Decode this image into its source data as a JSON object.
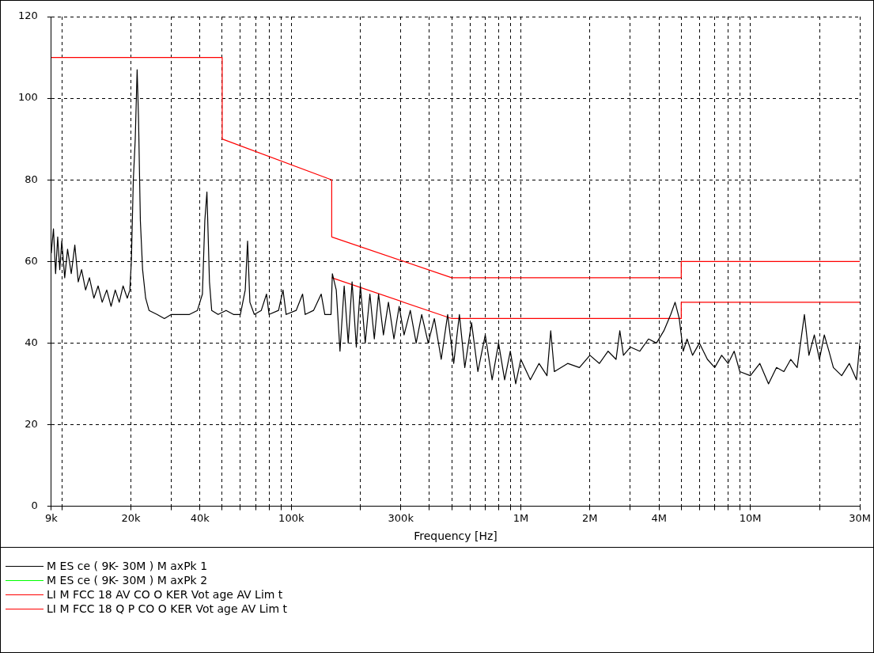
{
  "chart_data": {
    "type": "line",
    "xlabel": "Frequency [Hz]",
    "log": "x",
    "grid": true,
    "legend": "bottom",
    "marker": "none",
    "line_style": "solid",
    "xlim": [
      9000,
      30000000
    ],
    "ylim": [
      0,
      120
    ],
    "yticks": [
      0,
      20,
      40,
      60,
      80,
      100,
      120
    ],
    "xticks": [
      {
        "value": 9000,
        "label": "9k"
      },
      {
        "value": 10000,
        "label": null
      },
      {
        "value": 20000,
        "label": "20k"
      },
      {
        "value": 30000,
        "label": null
      },
      {
        "value": 40000,
        "label": "40k"
      },
      {
        "value": 50000,
        "label": null
      },
      {
        "value": 60000,
        "label": null
      },
      {
        "value": 70000,
        "label": null
      },
      {
        "value": 80000,
        "label": null
      },
      {
        "value": 90000,
        "label": null
      },
      {
        "value": 100000,
        "label": "100k"
      },
      {
        "value": 200000,
        "label": null
      },
      {
        "value": 300000,
        "label": "300k"
      },
      {
        "value": 400000,
        "label": null
      },
      {
        "value": 500000,
        "label": null
      },
      {
        "value": 600000,
        "label": null
      },
      {
        "value": 700000,
        "label": null
      },
      {
        "value": 800000,
        "label": null
      },
      {
        "value": 900000,
        "label": null
      },
      {
        "value": 1000000,
        "label": "1M"
      },
      {
        "value": 2000000,
        "label": "2M"
      },
      {
        "value": 3000000,
        "label": null
      },
      {
        "value": 4000000,
        "label": "4M"
      },
      {
        "value": 5000000,
        "label": null
      },
      {
        "value": 6000000,
        "label": null
      },
      {
        "value": 7000000,
        "label": null
      },
      {
        "value": 8000000,
        "label": null
      },
      {
        "value": 9000000,
        "label": null
      },
      {
        "value": 10000000,
        "label": "10M"
      },
      {
        "value": 20000000,
        "label": null
      },
      {
        "value": 30000000,
        "label": "30M"
      }
    ],
    "series": [
      {
        "name": "M ES ce ( 9K- 30M ) M axPk 1",
        "color": "#000000",
        "x": [
          9000,
          9200,
          9400,
          9600,
          9800,
          10000,
          10300,
          10600,
          11000,
          11400,
          11800,
          12200,
          12700,
          13200,
          13800,
          14400,
          15000,
          15700,
          16400,
          17100,
          17800,
          18500,
          19300,
          19800,
          20100,
          20500,
          20900,
          21300,
          21600,
          22000,
          22500,
          23200,
          24000,
          26000,
          28000,
          30000,
          33000,
          36000,
          39000,
          41000,
          42000,
          42900,
          44000,
          45000,
          48000,
          52000,
          56000,
          60000,
          63000,
          64500,
          66000,
          69000,
          74000,
          78000,
          80000,
          88000,
          92000,
          95000,
          105000,
          112000,
          115000,
          125000,
          135000,
          140000,
          149000,
          151000,
          157000,
          163000,
          170000,
          177000,
          184000,
          192000,
          200000,
          210000,
          220000,
          230000,
          240000,
          252000,
          265000,
          280000,
          295000,
          310000,
          330000,
          350000,
          370000,
          395000,
          420000,
          450000,
          480000,
          510000,
          540000,
          570000,
          610000,
          650000,
          700000,
          750000,
          800000,
          850000,
          900000,
          950000,
          1000000,
          1100000,
          1200000,
          1300000,
          1350000,
          1400000,
          1600000,
          1800000,
          2000000,
          2200000,
          2400000,
          2600000,
          2700000,
          2800000,
          3000000,
          3300000,
          3600000,
          3900000,
          4200000,
          4500000,
          4700000,
          4900000,
          5100000,
          5300000,
          5600000,
          6000000,
          6500000,
          7000000,
          7500000,
          8000000,
          8500000,
          9000000,
          10000000,
          11000000,
          12000000,
          13000000,
          14000000,
          15000000,
          16000000,
          17200000,
          18000000,
          19000000,
          20000000,
          21000000,
          22000000,
          23000000,
          25000000,
          27000000,
          29000000,
          30000000
        ],
        "values": [
          62,
          68,
          57,
          66,
          58,
          65,
          56,
          63,
          57,
          64,
          55,
          58,
          53,
          56,
          51,
          54,
          50,
          53,
          49,
          53,
          50,
          54,
          51,
          53,
          60,
          80,
          90,
          107,
          95,
          70,
          58,
          51,
          48,
          47,
          46,
          47,
          47,
          47,
          48,
          52,
          70,
          77,
          55,
          48,
          47,
          48,
          47,
          47,
          53,
          65,
          50,
          47,
          48,
          52,
          47,
          48,
          53,
          47,
          48,
          52,
          47,
          48,
          52,
          47,
          47,
          57,
          53,
          38,
          54,
          40,
          55,
          39,
          54,
          40,
          52,
          41,
          52,
          42,
          50,
          41,
          49,
          42,
          48,
          40,
          47,
          40,
          46,
          36,
          47,
          35,
          47,
          34,
          45,
          33,
          42,
          31,
          40,
          31,
          38,
          30,
          36,
          31,
          35,
          32,
          43,
          33,
          35,
          34,
          37,
          35,
          38,
          36,
          43,
          37,
          39,
          38,
          41,
          40,
          43,
          47,
          50,
          46,
          38,
          41,
          37,
          40,
          36,
          34,
          37,
          35,
          38,
          33,
          32,
          35,
          30,
          34,
          33,
          36,
          34,
          47,
          37,
          42,
          36,
          42,
          38,
          34,
          32,
          35,
          31,
          40
        ]
      },
      {
        "name": "M ES ce ( 9K- 30M ) M axPk 2",
        "color": "#00ff00"
      },
      {
        "name": "LI M FCC 18 AV CO O KER Vot age AV Lim t",
        "color": "#ff0000",
        "x": [
          150000,
          500000,
          5000000,
          5000000,
          30000000
        ],
        "values": [
          56,
          46,
          46,
          50,
          50
        ]
      },
      {
        "name": "LI M FCC 18 Q P CO O KER Vot age AV Lim t",
        "color": "#ff0000",
        "x": [
          9000,
          50000,
          50000,
          150000,
          150000,
          500000,
          5000000,
          5000000,
          30000000
        ],
        "values": [
          110,
          110,
          90,
          80,
          66,
          56,
          56,
          60,
          60
        ]
      }
    ]
  }
}
